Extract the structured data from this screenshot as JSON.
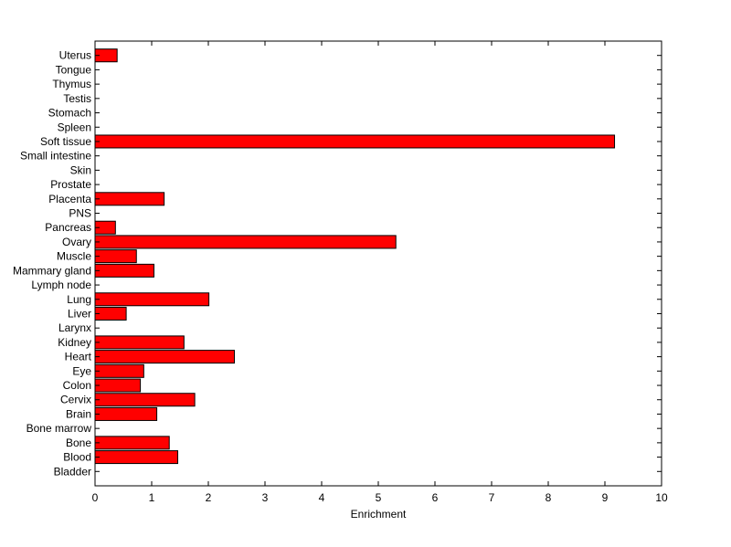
{
  "chart_data": {
    "type": "bar",
    "orientation": "horizontal",
    "title": "",
    "xlabel": "Enrichment",
    "ylabel": "",
    "xlim": [
      0,
      10
    ],
    "x_ticks": [
      0,
      1,
      2,
      3,
      4,
      5,
      6,
      7,
      8,
      9,
      10
    ],
    "grid": false,
    "bar_color": "#ff0000",
    "categories": [
      "Bladder",
      "Blood",
      "Bone",
      "Bone marrow",
      "Brain",
      "Cervix",
      "Colon",
      "Eye",
      "Heart",
      "Kidney",
      "Larynx",
      "Liver",
      "Lung",
      "Lymph node",
      "Mammary gland",
      "Muscle",
      "Ovary",
      "Pancreas",
      "PNS",
      "Placenta",
      "Prostate",
      "Skin",
      "Small intestine",
      "Soft tissue",
      "Spleen",
      "Stomach",
      "Testis",
      "Thymus",
      "Tongue",
      "Uterus"
    ],
    "values": [
      0,
      1.46,
      1.31,
      0,
      1.09,
      1.76,
      0.8,
      0.86,
      2.46,
      1.57,
      0,
      0.55,
      2.01,
      0,
      1.04,
      0.73,
      5.31,
      0.36,
      0,
      1.22,
      0,
      0,
      0,
      9.17,
      0,
      0,
      0,
      0,
      0,
      0.39
    ]
  }
}
